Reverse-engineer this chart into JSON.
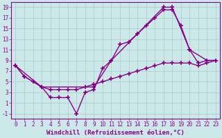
{
  "background_color": "#cce8e8",
  "grid_color": "#aacccc",
  "line_color": "#880088",
  "marker": "+",
  "markersize": 4,
  "markeredgewidth": 1.2,
  "linewidth": 1.0,
  "xlabel": "Windchill (Refroidissement éolien,°C)",
  "xlabel_fontsize": 6.5,
  "tick_fontsize": 5.5,
  "xlim": [
    -0.5,
    23.5
  ],
  "ylim": [
    -2.0,
    20.0
  ],
  "yticks": [
    -1,
    1,
    3,
    5,
    7,
    9,
    11,
    13,
    15,
    17,
    19
  ],
  "xticks": [
    0,
    1,
    2,
    3,
    4,
    5,
    6,
    7,
    8,
    9,
    10,
    11,
    12,
    13,
    14,
    15,
    16,
    17,
    18,
    19,
    20,
    21,
    22,
    23
  ],
  "line1_x": [
    0,
    1,
    2,
    3,
    4,
    5,
    6,
    7,
    8,
    9,
    10,
    11,
    12,
    13,
    14,
    15,
    16,
    17,
    18,
    19,
    20,
    21,
    22,
    23
  ],
  "line1_y": [
    8,
    6,
    5,
    4,
    2,
    2,
    2,
    -1,
    3,
    3.5,
    7.5,
    9,
    12,
    12.5,
    14,
    15.5,
    17,
    18.5,
    18.5,
    15.5,
    11,
    8.5,
    9,
    9
  ],
  "line2_x": [
    0,
    1,
    2,
    3,
    4,
    5,
    6,
    7,
    8,
    9,
    10,
    11,
    12,
    13,
    14,
    15,
    16,
    17,
    18,
    19,
    20,
    21,
    22,
    23
  ],
  "line2_y": [
    8,
    6,
    5,
    4,
    3.5,
    3.5,
    3.5,
    3.5,
    4,
    4.5,
    5,
    5.5,
    6,
    6.5,
    7,
    7.5,
    8,
    8.5,
    8.5,
    8.5,
    8.5,
    8,
    8.5,
    9
  ],
  "line3_x": [
    0,
    3,
    9,
    11,
    14,
    17,
    18,
    20,
    22,
    23
  ],
  "line3_y": [
    8,
    4,
    4,
    9,
    14,
    19,
    19,
    11,
    9,
    9
  ]
}
